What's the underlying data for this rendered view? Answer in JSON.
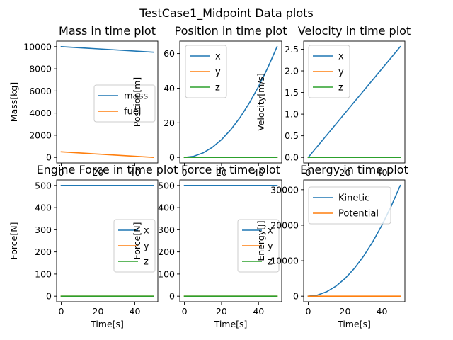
{
  "suptitle": "TestCase1_Midpoint Data plots",
  "chart_data": [
    {
      "type": "line",
      "title": "Mass in time plot",
      "xlabel": "Time[s]",
      "ylabel": "Mass[kg]",
      "xlim": [
        -2.5,
        52.5
      ],
      "ylim": [
        -500,
        10500
      ],
      "xticks": [
        0,
        20,
        40
      ],
      "yticks": [
        0,
        2000,
        4000,
        6000,
        8000,
        10000
      ],
      "legend": "center-right",
      "x": [
        0,
        50
      ],
      "series": [
        {
          "name": "mass",
          "color": "#1f77b4",
          "values": [
            10000,
            9500
          ]
        },
        {
          "name": "fuel",
          "color": "#ff7f0e",
          "values": [
            500,
            0
          ]
        }
      ]
    },
    {
      "type": "line",
      "title": "Position in time plot",
      "xlabel": "Time[s]",
      "ylabel": "Position[m]",
      "xlim": [
        -2.5,
        52.5
      ],
      "ylim": [
        -3.2,
        67.2
      ],
      "xticks": [
        0,
        20,
        40
      ],
      "yticks": [
        0,
        20,
        40,
        60
      ],
      "legend": "top-left",
      "x": [
        0,
        5,
        10,
        15,
        20,
        25,
        30,
        35,
        40,
        45,
        50
      ],
      "series": [
        {
          "name": "x",
          "color": "#1f77b4",
          "values": [
            0,
            0.64,
            2.56,
            5.76,
            10.24,
            16,
            23.04,
            31.36,
            40.96,
            51.84,
            64
          ]
        },
        {
          "name": "y",
          "color": "#ff7f0e",
          "values": [
            0,
            0,
            0,
            0,
            0,
            0,
            0,
            0,
            0,
            0,
            0
          ]
        },
        {
          "name": "z",
          "color": "#2ca02c",
          "values": [
            0,
            0,
            0,
            0,
            0,
            0,
            0,
            0,
            0,
            0,
            0
          ]
        }
      ]
    },
    {
      "type": "line",
      "title": "Velocity in time plot",
      "xlabel": "Time[s]",
      "ylabel": "Velocity[m/s]",
      "xlim": [
        -2.5,
        52.5
      ],
      "ylim": [
        -0.128,
        2.688
      ],
      "xticks": [
        0,
        20,
        40
      ],
      "yticks": [
        0,
        0.5,
        1.0,
        1.5,
        2.0,
        2.5
      ],
      "ytick_labels": [
        "0.0",
        "0.5",
        "1.0",
        "1.5",
        "2.0",
        "2.5"
      ],
      "legend": "top-left",
      "x": [
        0,
        50
      ],
      "series": [
        {
          "name": "x",
          "color": "#1f77b4",
          "values": [
            0,
            2.56
          ]
        },
        {
          "name": "y",
          "color": "#ff7f0e",
          "values": [
            0,
            0
          ]
        },
        {
          "name": "z",
          "color": "#2ca02c",
          "values": [
            0,
            0
          ]
        }
      ]
    },
    {
      "type": "line",
      "title": "Engine Force in time plot",
      "xlabel": "Time[s]",
      "ylabel": "Force[N]",
      "xlim": [
        -2.5,
        52.5
      ],
      "ylim": [
        -25,
        525
      ],
      "xticks": [
        0,
        20,
        40
      ],
      "yticks": [
        0,
        100,
        200,
        300,
        400,
        500
      ],
      "legend": "center-right",
      "x": [
        0,
        50
      ],
      "series": [
        {
          "name": "x",
          "color": "#1f77b4",
          "values": [
            500,
            500
          ]
        },
        {
          "name": "y",
          "color": "#ff7f0e",
          "values": [
            0,
            0
          ]
        },
        {
          "name": "z",
          "color": "#2ca02c",
          "values": [
            0,
            0
          ]
        }
      ]
    },
    {
      "type": "line",
      "title": "Force in time plot",
      "xlabel": "Time[s]",
      "ylabel": "Force[N]",
      "xlim": [
        -2.5,
        52.5
      ],
      "ylim": [
        -25,
        525
      ],
      "xticks": [
        0,
        20,
        40
      ],
      "yticks": [
        0,
        100,
        200,
        300,
        400,
        500
      ],
      "legend": "center-right",
      "x": [
        0,
        50
      ],
      "series": [
        {
          "name": "x",
          "color": "#1f77b4",
          "values": [
            500,
            500
          ]
        },
        {
          "name": "y",
          "color": "#ff7f0e",
          "values": [
            0,
            0
          ]
        },
        {
          "name": "z",
          "color": "#2ca02c",
          "values": [
            0,
            0
          ]
        }
      ]
    },
    {
      "type": "line",
      "title": "Energy in time plot",
      "xlabel": "Time[s]",
      "ylabel": "Energy[J]",
      "xlim": [
        -2.5,
        52.5
      ],
      "ylim": [
        -1560,
        32760
      ],
      "xticks": [
        0,
        20,
        40
      ],
      "yticks": [
        0,
        10000,
        20000,
        30000
      ],
      "legend": "top-left",
      "x": [
        0,
        5,
        10,
        15,
        20,
        25,
        30,
        35,
        40,
        45,
        50
      ],
      "series": [
        {
          "name": "Kinetic",
          "color": "#1f77b4",
          "values": [
            0,
            312,
            1248,
            2808,
            4992,
            7800,
            11232,
            15288,
            19968,
            25272,
            31200
          ]
        },
        {
          "name": "Potential",
          "color": "#ff7f0e",
          "values": [
            0,
            0,
            0,
            0,
            0,
            0,
            0,
            0,
            0,
            0,
            0
          ]
        }
      ]
    }
  ]
}
